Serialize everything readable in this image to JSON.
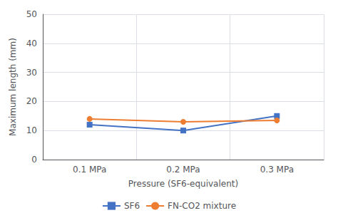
{
  "chart_data": {
    "type": "line",
    "xlabel": "Pressure (SF6-equivalent)",
    "ylabel": "Maximum length (mm)",
    "categories": [
      "0.1 MPa",
      "0.2 MPa",
      "0.3 MPa"
    ],
    "series": [
      {
        "name": "SF6",
        "color": "#4472c4",
        "marker": "square",
        "values": [
          12,
          10,
          15
        ]
      },
      {
        "name": "FN-CO2 mixture",
        "color": "#ed7d31",
        "marker": "circle",
        "values": [
          14,
          13,
          13.5
        ]
      }
    ],
    "ylim": [
      0,
      50
    ],
    "yticks": [
      0,
      10,
      20,
      30,
      40,
      50
    ],
    "grid": true,
    "legend": "bottom"
  }
}
